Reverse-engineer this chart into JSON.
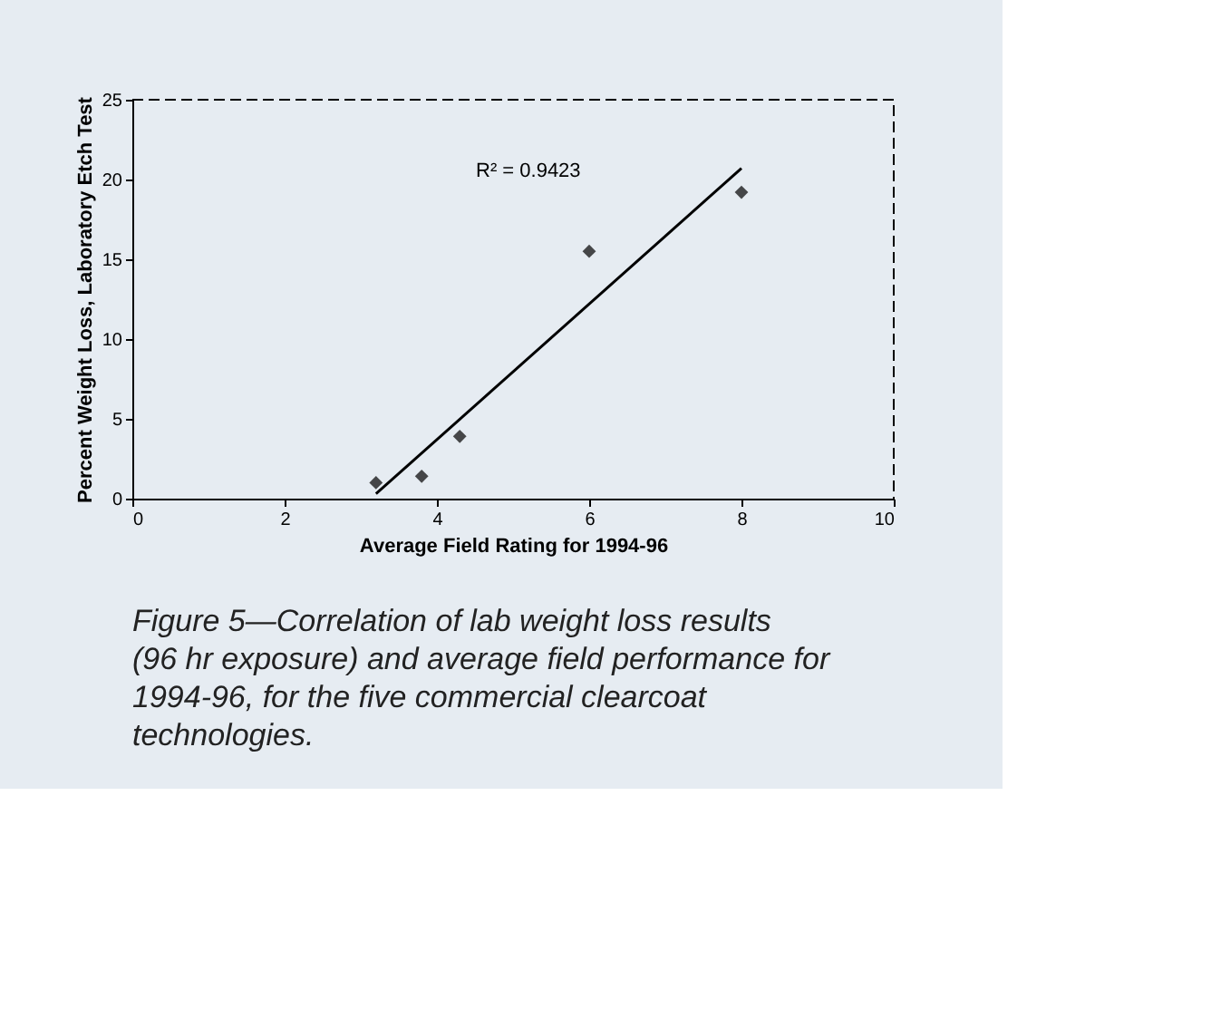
{
  "chart_data": {
    "type": "scatter",
    "xlabel": "Average Field Rating for 1994-96",
    "ylabel": "Percent Weight Loss, Laboratory Etch Test",
    "x": [
      3.2,
      3.8,
      4.3,
      6.0,
      8.0
    ],
    "series": [
      {
        "color": "#000000",
        "marker": "diamond",
        "values": [
          1.0,
          1.4,
          3.9,
          15.5,
          19.2
        ]
      },
      {
        "type": "line",
        "color": "#000000",
        "x": [
          3.2,
          8.0
        ],
        "values": [
          0.3,
          20.7
        ],
        "line_style": "solid"
      }
    ],
    "xlim": [
      0,
      10
    ],
    "xticks": [
      0,
      2,
      4,
      6,
      8,
      10
    ],
    "ylim": [
      0,
      25
    ],
    "yticks": [
      0,
      5,
      10,
      15,
      20,
      25
    ],
    "grid": false,
    "annotations": [
      "R² = 0.9423",
      "Figure 5—Correlation of lab weight loss results (96 hr exposure) and average field performance for 1994-96, for the five commercial clearcoat technologies."
    ]
  }
}
